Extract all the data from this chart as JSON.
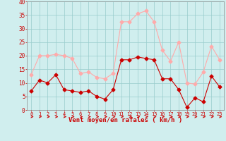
{
  "hours": [
    0,
    1,
    2,
    3,
    4,
    5,
    6,
    7,
    8,
    9,
    10,
    11,
    12,
    13,
    14,
    15,
    16,
    17,
    18,
    19,
    20,
    21,
    22,
    23
  ],
  "wind_avg": [
    7,
    11,
    10,
    13,
    7.5,
    7,
    6.5,
    7,
    5,
    4,
    7.5,
    18.5,
    18.5,
    19.5,
    19,
    18.5,
    11.5,
    11.5,
    7.5,
    1,
    4.5,
    3,
    12.5,
    8.5
  ],
  "wind_gust": [
    13,
    20,
    20,
    20.5,
    20,
    19,
    13.5,
    14,
    12,
    11.5,
    13.5,
    32.5,
    32.5,
    35.5,
    36.5,
    32.5,
    22,
    18,
    25,
    10,
    9.5,
    14,
    23.5,
    18.5
  ],
  "wind_avg_color": "#cc0000",
  "wind_gust_color": "#ffaaaa",
  "bg_color": "#d0eeee",
  "grid_color": "#99cccc",
  "xlabel": "Vent moyen/en rafales ( km/h )",
  "xlabel_color": "#cc0000",
  "tick_color": "#cc0000",
  "ylim": [
    0,
    40
  ],
  "yticks": [
    0,
    5,
    10,
    15,
    20,
    25,
    30,
    35,
    40
  ]
}
